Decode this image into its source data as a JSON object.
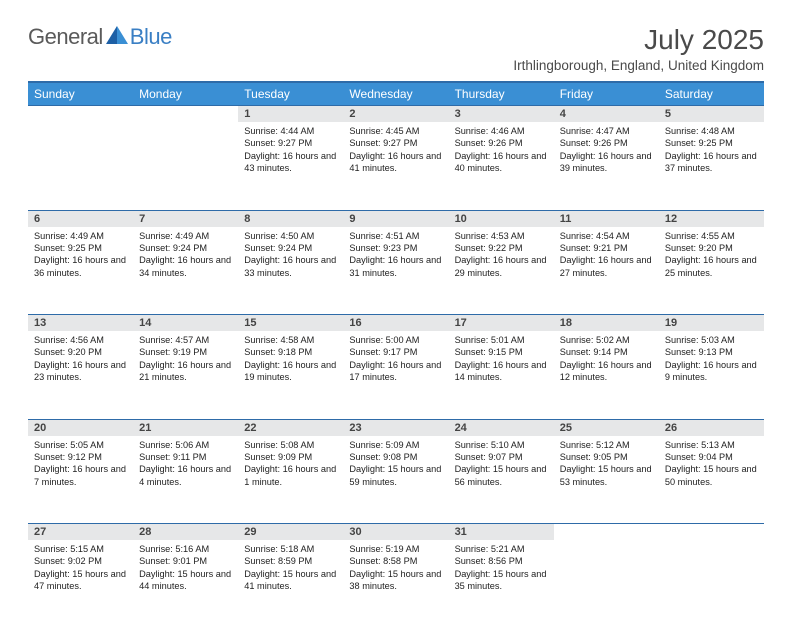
{
  "logo": {
    "part1": "General",
    "part2": "Blue"
  },
  "header": {
    "month_title": "July 2025",
    "location": "Irthlingborough, England, United Kingdom"
  },
  "colors": {
    "header_bg": "#3a8fd4",
    "header_border": "#2e6ba8",
    "daynum_bg": "#e6e7e8",
    "logo_gray": "#5a5a5a",
    "logo_blue": "#3a7fc4"
  },
  "weekdays": [
    "Sunday",
    "Monday",
    "Tuesday",
    "Wednesday",
    "Thursday",
    "Friday",
    "Saturday"
  ],
  "weeks": [
    [
      null,
      null,
      {
        "day": "1",
        "sunrise": "Sunrise: 4:44 AM",
        "sunset": "Sunset: 9:27 PM",
        "daylight": "Daylight: 16 hours and 43 minutes."
      },
      {
        "day": "2",
        "sunrise": "Sunrise: 4:45 AM",
        "sunset": "Sunset: 9:27 PM",
        "daylight": "Daylight: 16 hours and 41 minutes."
      },
      {
        "day": "3",
        "sunrise": "Sunrise: 4:46 AM",
        "sunset": "Sunset: 9:26 PM",
        "daylight": "Daylight: 16 hours and 40 minutes."
      },
      {
        "day": "4",
        "sunrise": "Sunrise: 4:47 AM",
        "sunset": "Sunset: 9:26 PM",
        "daylight": "Daylight: 16 hours and 39 minutes."
      },
      {
        "day": "5",
        "sunrise": "Sunrise: 4:48 AM",
        "sunset": "Sunset: 9:25 PM",
        "daylight": "Daylight: 16 hours and 37 minutes."
      }
    ],
    [
      {
        "day": "6",
        "sunrise": "Sunrise: 4:49 AM",
        "sunset": "Sunset: 9:25 PM",
        "daylight": "Daylight: 16 hours and 36 minutes."
      },
      {
        "day": "7",
        "sunrise": "Sunrise: 4:49 AM",
        "sunset": "Sunset: 9:24 PM",
        "daylight": "Daylight: 16 hours and 34 minutes."
      },
      {
        "day": "8",
        "sunrise": "Sunrise: 4:50 AM",
        "sunset": "Sunset: 9:24 PM",
        "daylight": "Daylight: 16 hours and 33 minutes."
      },
      {
        "day": "9",
        "sunrise": "Sunrise: 4:51 AM",
        "sunset": "Sunset: 9:23 PM",
        "daylight": "Daylight: 16 hours and 31 minutes."
      },
      {
        "day": "10",
        "sunrise": "Sunrise: 4:53 AM",
        "sunset": "Sunset: 9:22 PM",
        "daylight": "Daylight: 16 hours and 29 minutes."
      },
      {
        "day": "11",
        "sunrise": "Sunrise: 4:54 AM",
        "sunset": "Sunset: 9:21 PM",
        "daylight": "Daylight: 16 hours and 27 minutes."
      },
      {
        "day": "12",
        "sunrise": "Sunrise: 4:55 AM",
        "sunset": "Sunset: 9:20 PM",
        "daylight": "Daylight: 16 hours and 25 minutes."
      }
    ],
    [
      {
        "day": "13",
        "sunrise": "Sunrise: 4:56 AM",
        "sunset": "Sunset: 9:20 PM",
        "daylight": "Daylight: 16 hours and 23 minutes."
      },
      {
        "day": "14",
        "sunrise": "Sunrise: 4:57 AM",
        "sunset": "Sunset: 9:19 PM",
        "daylight": "Daylight: 16 hours and 21 minutes."
      },
      {
        "day": "15",
        "sunrise": "Sunrise: 4:58 AM",
        "sunset": "Sunset: 9:18 PM",
        "daylight": "Daylight: 16 hours and 19 minutes."
      },
      {
        "day": "16",
        "sunrise": "Sunrise: 5:00 AM",
        "sunset": "Sunset: 9:17 PM",
        "daylight": "Daylight: 16 hours and 17 minutes."
      },
      {
        "day": "17",
        "sunrise": "Sunrise: 5:01 AM",
        "sunset": "Sunset: 9:15 PM",
        "daylight": "Daylight: 16 hours and 14 minutes."
      },
      {
        "day": "18",
        "sunrise": "Sunrise: 5:02 AM",
        "sunset": "Sunset: 9:14 PM",
        "daylight": "Daylight: 16 hours and 12 minutes."
      },
      {
        "day": "19",
        "sunrise": "Sunrise: 5:03 AM",
        "sunset": "Sunset: 9:13 PM",
        "daylight": "Daylight: 16 hours and 9 minutes."
      }
    ],
    [
      {
        "day": "20",
        "sunrise": "Sunrise: 5:05 AM",
        "sunset": "Sunset: 9:12 PM",
        "daylight": "Daylight: 16 hours and 7 minutes."
      },
      {
        "day": "21",
        "sunrise": "Sunrise: 5:06 AM",
        "sunset": "Sunset: 9:11 PM",
        "daylight": "Daylight: 16 hours and 4 minutes."
      },
      {
        "day": "22",
        "sunrise": "Sunrise: 5:08 AM",
        "sunset": "Sunset: 9:09 PM",
        "daylight": "Daylight: 16 hours and 1 minute."
      },
      {
        "day": "23",
        "sunrise": "Sunrise: 5:09 AM",
        "sunset": "Sunset: 9:08 PM",
        "daylight": "Daylight: 15 hours and 59 minutes."
      },
      {
        "day": "24",
        "sunrise": "Sunrise: 5:10 AM",
        "sunset": "Sunset: 9:07 PM",
        "daylight": "Daylight: 15 hours and 56 minutes."
      },
      {
        "day": "25",
        "sunrise": "Sunrise: 5:12 AM",
        "sunset": "Sunset: 9:05 PM",
        "daylight": "Daylight: 15 hours and 53 minutes."
      },
      {
        "day": "26",
        "sunrise": "Sunrise: 5:13 AM",
        "sunset": "Sunset: 9:04 PM",
        "daylight": "Daylight: 15 hours and 50 minutes."
      }
    ],
    [
      {
        "day": "27",
        "sunrise": "Sunrise: 5:15 AM",
        "sunset": "Sunset: 9:02 PM",
        "daylight": "Daylight: 15 hours and 47 minutes."
      },
      {
        "day": "28",
        "sunrise": "Sunrise: 5:16 AM",
        "sunset": "Sunset: 9:01 PM",
        "daylight": "Daylight: 15 hours and 44 minutes."
      },
      {
        "day": "29",
        "sunrise": "Sunrise: 5:18 AM",
        "sunset": "Sunset: 8:59 PM",
        "daylight": "Daylight: 15 hours and 41 minutes."
      },
      {
        "day": "30",
        "sunrise": "Sunrise: 5:19 AM",
        "sunset": "Sunset: 8:58 PM",
        "daylight": "Daylight: 15 hours and 38 minutes."
      },
      {
        "day": "31",
        "sunrise": "Sunrise: 5:21 AM",
        "sunset": "Sunset: 8:56 PM",
        "daylight": "Daylight: 15 hours and 35 minutes."
      },
      null,
      null
    ]
  ]
}
